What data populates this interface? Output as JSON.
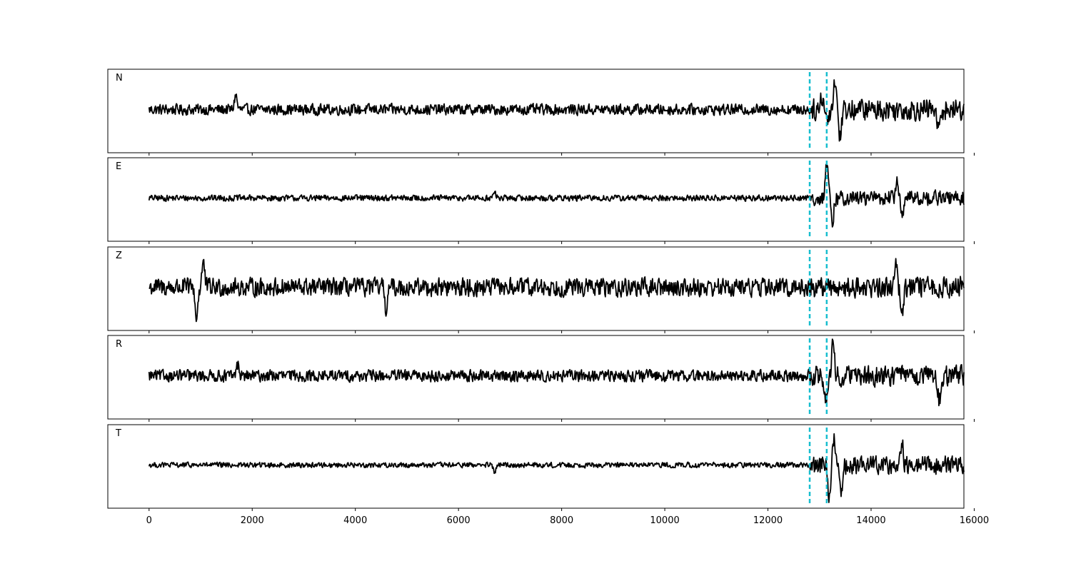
{
  "chart_data": {
    "type": "line",
    "title": "",
    "xlabel": "",
    "ylabel": "",
    "xlim": [
      -800,
      15800
    ],
    "x_ticks": [
      0,
      2000,
      4000,
      6000,
      8000,
      10000,
      12000,
      14000,
      16000
    ],
    "x_tick_labels": [
      "0",
      "2000",
      "4000",
      "6000",
      "8000",
      "10000",
      "12000",
      "14000",
      "16000"
    ],
    "markers": [
      12810,
      13140
    ],
    "marker_color": "#17becf",
    "trace_color": "#000000",
    "series": [
      {
        "name": "N",
        "x_range": [
          0,
          15800
        ],
        "noise_amp": 0.25,
        "event_amp": 0.75,
        "spikes": [
          [
            1680,
            0.4
          ],
          [
            13050,
            0.4
          ],
          [
            13150,
            -0.3
          ],
          [
            13300,
            0.85
          ],
          [
            13400,
            -0.75
          ],
          [
            15300,
            -0.6
          ]
        ]
      },
      {
        "name": "E",
        "x_range": [
          0,
          15800
        ],
        "noise_amp": 0.14,
        "event_amp": 0.55,
        "spikes": [
          [
            6700,
            0.15
          ],
          [
            13140,
            0.95
          ],
          [
            13250,
            -0.75
          ],
          [
            14500,
            0.5
          ],
          [
            14600,
            -0.5
          ]
        ]
      },
      {
        "name": "Z",
        "x_range": [
          0,
          15800
        ],
        "noise_amp": 0.42,
        "event_amp": 0.65,
        "spikes": [
          [
            920,
            -0.85
          ],
          [
            1050,
            0.7
          ],
          [
            4600,
            -0.6
          ],
          [
            14480,
            0.85
          ],
          [
            14600,
            -0.65
          ]
        ]
      },
      {
        "name": "R",
        "x_range": [
          0,
          15800
        ],
        "noise_amp": 0.27,
        "event_amp": 0.7,
        "spikes": [
          [
            1720,
            0.3
          ],
          [
            13120,
            -0.7
          ],
          [
            13260,
            0.95
          ],
          [
            15320,
            -0.7
          ]
        ]
      },
      {
        "name": "T",
        "x_range": [
          0,
          15800
        ],
        "noise_amp": 0.12,
        "event_amp": 0.7,
        "spikes": [
          [
            6700,
            -0.2
          ],
          [
            13190,
            -0.95
          ],
          [
            13280,
            0.75
          ],
          [
            13420,
            -0.9
          ],
          [
            14600,
            0.6
          ]
        ]
      }
    ]
  }
}
